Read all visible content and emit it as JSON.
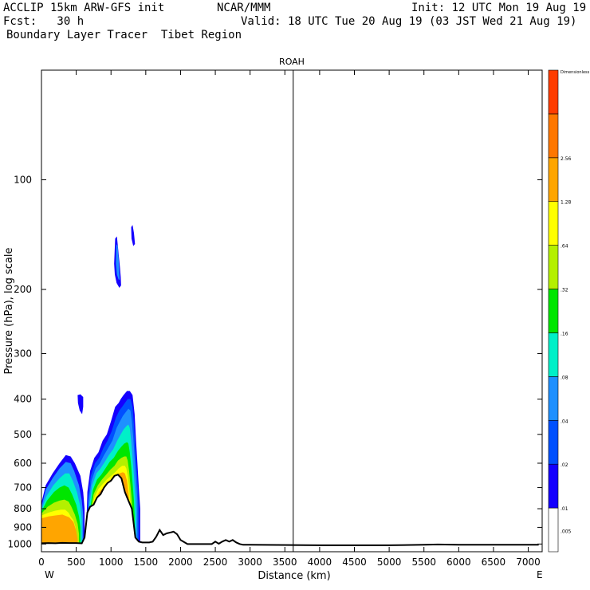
{
  "header": {
    "line1_left": "ACCLIP 15km ARW-GFS init",
    "line1_center": "NCAR/MMM",
    "line1_right": "Init: 12 UTC Mon 19 Aug 19",
    "line2_left": "Fcst:   30 h",
    "line2_right": "Valid: 18 UTC Tue 20 Aug 19 (03 JST Wed 21 Aug 19)",
    "line3_left": "Boundary Layer Tracer  Tibet Region"
  },
  "chart_data": {
    "type": "heatmap",
    "title": "ROAH",
    "xlabel": "Distance (km)",
    "ylabel": "Pressure (hPa), log scale",
    "x_end_labels": {
      "left": "W",
      "right": "E"
    },
    "xlim": [
      0,
      7200
    ],
    "ylim": [
      1050,
      50
    ],
    "x_ticks": [
      0,
      500,
      1000,
      1500,
      2000,
      2500,
      3000,
      3500,
      4000,
      4500,
      5000,
      5500,
      6000,
      6500,
      7000
    ],
    "y_ticks": [
      100,
      200,
      300,
      400,
      500,
      600,
      700,
      800,
      900,
      1000
    ],
    "vertical_marker_km": 3620,
    "colorbar": {
      "unit_label": "Dimensionless",
      "levels": [
        ".005",
        ".01",
        ".02",
        ".04",
        ".08",
        ".16",
        ".32",
        ".64",
        "1.28",
        "2.56"
      ],
      "colors": [
        "#ffffff",
        "#1400ff",
        "#0050ff",
        "#1e90ff",
        "#00f0c8",
        "#00e600",
        "#b4f000",
        "#ffff00",
        "#ffa500",
        "#ff7700",
        "#ff3c00"
      ]
    },
    "terrain_profile": {
      "distance_km": [
        0,
        100,
        200,
        300,
        400,
        500,
        580,
        620,
        660,
        700,
        750,
        800,
        850,
        900,
        950,
        1000,
        1050,
        1100,
        1150,
        1200,
        1250,
        1300,
        1350,
        1400,
        1450,
        1500,
        1550,
        1600,
        1650,
        1700,
        1750,
        1800,
        1850,
        1900,
        1950,
        2000,
        2100,
        2200,
        2300,
        2400,
        2450,
        2500,
        2550,
        2600,
        2650,
        2700,
        2750,
        2800,
        2850,
        2900,
        3000,
        4000,
        5000,
        5500,
        5700,
        6000,
        7150
      ],
      "pressure_hpa": [
        995,
        994,
        995,
        993,
        994,
        994,
        996,
        960,
        820,
        790,
        780,
        745,
        730,
        700,
        680,
        670,
        650,
        645,
        660,
        720,
        760,
        800,
        960,
        985,
        990,
        990,
        990,
        985,
        955,
        915,
        945,
        935,
        930,
        925,
        940,
        975,
        1000,
        1000,
        1000,
        1000,
        1000,
        985,
        998,
        985,
        975,
        985,
        975,
        990,
        1000,
        1005,
        1005,
        1008,
        1008,
        1005,
        1003,
        1005,
        1005
      ]
    },
    "tracer_regions": [
      {
        "name": "western-lowland",
        "x_km": [
          0,
          620
        ],
        "top_hpa": 570,
        "peak_level": "1.28"
      },
      {
        "name": "plateau-column",
        "x_km": [
          640,
          1420
        ],
        "top_hpa": 370,
        "peak_level": "1.28"
      },
      {
        "name": "upper-plume",
        "x_km": [
          1060,
          1360
        ],
        "top_hpa": 135,
        "bottom_hpa": 195,
        "peak_level": ".04"
      },
      {
        "name": "small-blob",
        "x_km": [
          520,
          600
        ],
        "top_hpa": 390,
        "bottom_hpa": 440,
        "peak_level": ".01"
      }
    ]
  }
}
